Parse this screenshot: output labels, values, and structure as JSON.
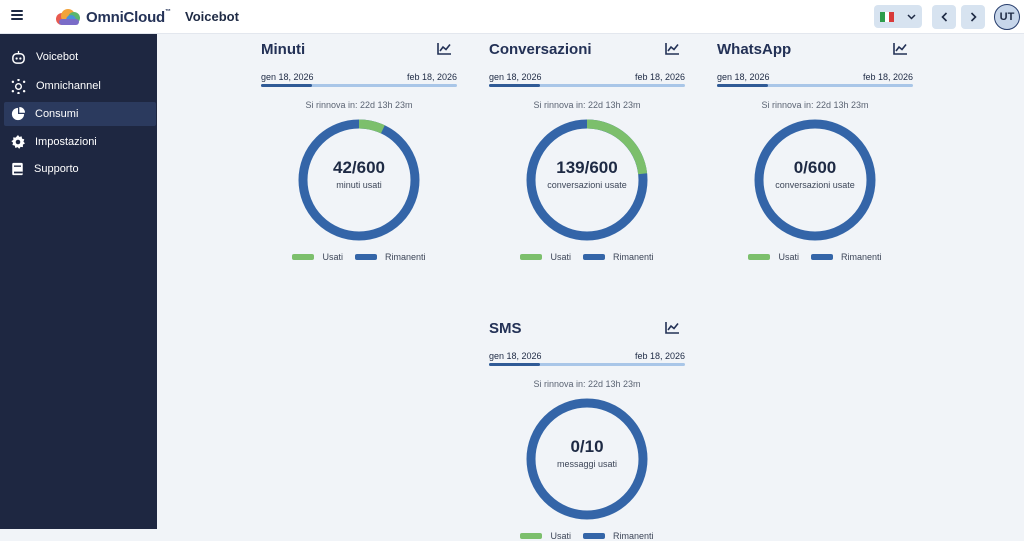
{
  "header": {
    "brand": "OmniCloud",
    "brand_tm": "™",
    "title": "Voicebot",
    "language_flag": "italy-flag-icon",
    "avatar": "UT"
  },
  "sidebar": {
    "items": [
      {
        "label": "Voicebot",
        "icon": "robot-icon",
        "active": false
      },
      {
        "label": "Omnichannel",
        "icon": "hub-icon",
        "active": false
      },
      {
        "label": "Consumi",
        "icon": "pie-chart-icon",
        "active": true
      },
      {
        "label": "Impostazioni",
        "icon": "gear-icon",
        "active": false
      },
      {
        "label": "Supporto",
        "icon": "book-icon",
        "active": false
      }
    ]
  },
  "colors": {
    "used": "#7cbf6c",
    "remaining": "#3465a8",
    "sidebar": "#1e2741"
  },
  "cards": [
    {
      "title": "Minuti",
      "start": "gen 18, 2026",
      "end": "feb 18, 2026",
      "period_progress": 0.26,
      "renew": "Si rinnova in: 22d 13h 23m",
      "used": 42,
      "total": 600,
      "value": "42/600",
      "sub": "minuti usati",
      "legend_used": "Usati",
      "legend_remaining": "Rimanenti"
    },
    {
      "title": "Conversazioni",
      "start": "gen 18, 2026",
      "end": "feb 18, 2026",
      "period_progress": 0.26,
      "renew": "Si rinnova in: 22d 13h 23m",
      "used": 139,
      "total": 600,
      "value": "139/600",
      "sub": "conversazioni usate",
      "legend_used": "Usati",
      "legend_remaining": "Rimanenti"
    },
    {
      "title": "WhatsApp",
      "start": "gen 18, 2026",
      "end": "feb 18, 2026",
      "period_progress": 0.26,
      "renew": "Si rinnova in: 22d 13h 23m",
      "used": 0,
      "total": 600,
      "value": "0/600",
      "sub": "conversazioni usate",
      "legend_used": "Usati",
      "legend_remaining": "Rimanenti"
    },
    {
      "title": "SMS",
      "start": "gen 18, 2026",
      "end": "feb 18, 2026",
      "period_progress": 0.26,
      "renew": "Si rinnova in: 22d 13h 23m",
      "used": 0,
      "total": 10,
      "value": "0/10",
      "sub": "messaggi usati",
      "legend_used": "Usati",
      "legend_remaining": "Rimanenti"
    }
  ]
}
